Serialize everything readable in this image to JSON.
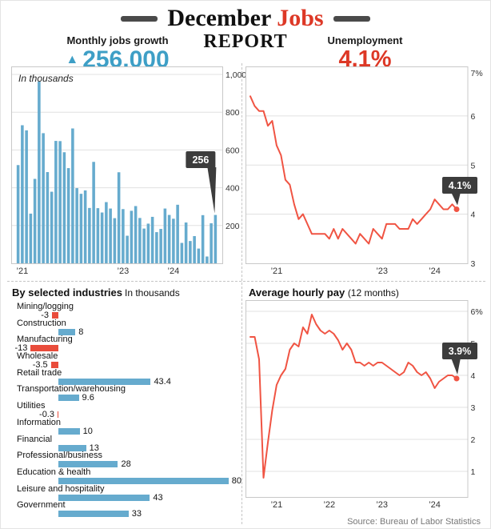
{
  "colors": {
    "blue_text": "#3e9fc6",
    "blue_bar": "#66abce",
    "red_text": "#dd3826",
    "red_line": "#f05443",
    "red_bar": "#e94c3b",
    "dark_box": "#3c3c3c"
  },
  "header": {
    "title_part1": "December",
    "title_part2": "Jobs",
    "title_line2": "REPORT",
    "left_stat": {
      "label": "Monthly jobs growth",
      "arrow": "▲",
      "value": "256,000"
    },
    "right_stat": {
      "label": "Unemployment",
      "value": "4.1%"
    }
  },
  "footer": {
    "source": "Source: Bureau of Labor Statistics"
  },
  "chart_data": [
    {
      "id": "monthly_jobs_growth",
      "type": "bar",
      "title": "Monthly jobs growth",
      "headline_value": "256,000",
      "note": "In thousands",
      "x_range": "monthly, ’21–’24",
      "ylim": [
        0,
        1000
      ],
      "y_ticks": [
        "1,000",
        "800",
        "600",
        "400",
        "200"
      ],
      "y_tick_values": [
        1000,
        800,
        600,
        400,
        200
      ],
      "x_ticks": [
        {
          "label": "’21",
          "yr": 0
        },
        {
          "label": "’23",
          "yr": 2
        },
        {
          "label": "’24",
          "yr": 3
        }
      ],
      "callout": {
        "text": "256",
        "value": 256
      },
      "values": [
        520,
        731,
        704,
        263,
        447,
        962,
        689,
        483,
        379,
        648,
        647,
        588,
        504,
        714,
        398,
        368,
        386,
        293,
        537,
        292,
        269,
        324,
        290,
        239,
        482,
        287,
        146,
        278,
        303,
        240,
        184,
        210,
        246,
        165,
        182,
        290,
        256,
        236,
        310,
        108,
        216,
        118,
        144,
        78,
        255,
        36,
        212,
        256
      ]
    },
    {
      "id": "unemployment_rate",
      "type": "line",
      "title": "Unemployment",
      "headline_value": "4.1%",
      "x_range": "monthly, ’21–’24",
      "ylim": [
        3,
        7
      ],
      "y_ticks": [
        "7%",
        "6",
        "5",
        "4",
        "3"
      ],
      "y_tick_values": [
        7,
        6,
        5,
        4,
        3
      ],
      "x_ticks": [
        {
          "label": "’21",
          "yr": 0
        },
        {
          "label": "’23",
          "yr": 2
        },
        {
          "label": "’24",
          "yr": 3
        }
      ],
      "callout": {
        "text": "4.1%",
        "value": 4.1
      },
      "values": [
        6.4,
        6.2,
        6.1,
        6.1,
        5.8,
        5.9,
        5.4,
        5.2,
        4.7,
        4.6,
        4.2,
        3.9,
        4.0,
        3.8,
        3.6,
        3.6,
        3.6,
        3.6,
        3.5,
        3.7,
        3.5,
        3.7,
        3.6,
        3.5,
        3.4,
        3.6,
        3.5,
        3.4,
        3.7,
        3.6,
        3.5,
        3.8,
        3.8,
        3.8,
        3.7,
        3.7,
        3.7,
        3.9,
        3.8,
        3.9,
        4.0,
        4.1,
        4.3,
        4.2,
        4.1,
        4.1,
        4.2,
        4.1
      ]
    },
    {
      "id": "by_selected_industries",
      "type": "bar",
      "orientation": "horizontal",
      "title": "By selected industries",
      "note": "In thousands",
      "items": [
        {
          "label": "Mining/logging",
          "value": -3
        },
        {
          "label": "Construction",
          "value": 8
        },
        {
          "label": "Manufacturing",
          "value": -13
        },
        {
          "label": "Wholesale",
          "value": -3.5
        },
        {
          "label": "Retail trade",
          "value": 43.4
        },
        {
          "label": "Transportation/warehousing",
          "value": 9.6
        },
        {
          "label": "Utilities",
          "value": -0.3
        },
        {
          "label": "Information",
          "value": 10
        },
        {
          "label": "Financial",
          "value": 13
        },
        {
          "label": "Professional/business",
          "value": 28
        },
        {
          "label": "Education & health",
          "value": 80
        },
        {
          "label": "Leisure and hospitality",
          "value": 43
        },
        {
          "label": "Government",
          "value": 33
        }
      ]
    },
    {
      "id": "average_hourly_pay",
      "type": "line",
      "title": "Average hourly pay",
      "subtitle": "(12 months)",
      "x_range": "monthly, ’21–’24",
      "ylim": [
        1,
        6
      ],
      "y_ticks": [
        "6%",
        "5",
        "4",
        "3",
        "2",
        "1"
      ],
      "y_tick_values": [
        6,
        5,
        4,
        3,
        2,
        1
      ],
      "x_ticks": [
        {
          "label": "’21",
          "yr": 0
        },
        {
          "label": "’22",
          "yr": 1
        },
        {
          "label": "’23",
          "yr": 2
        },
        {
          "label": "’24",
          "yr": 3
        }
      ],
      "callout": {
        "text": "3.9%",
        "value": 3.9
      },
      "values": [
        5.2,
        5.2,
        4.5,
        0.8,
        1.9,
        2.9,
        3.7,
        4.0,
        4.2,
        4.8,
        5.0,
        4.9,
        5.5,
        5.3,
        5.9,
        5.6,
        5.4,
        5.3,
        5.4,
        5.3,
        5.1,
        4.8,
        5.0,
        4.8,
        4.4,
        4.4,
        4.3,
        4.4,
        4.3,
        4.4,
        4.4,
        4.3,
        4.2,
        4.1,
        4.0,
        4.1,
        4.4,
        4.3,
        4.1,
        4.0,
        4.1,
        3.9,
        3.6,
        3.8,
        3.9,
        4.0,
        4.0,
        3.9
      ]
    }
  ]
}
